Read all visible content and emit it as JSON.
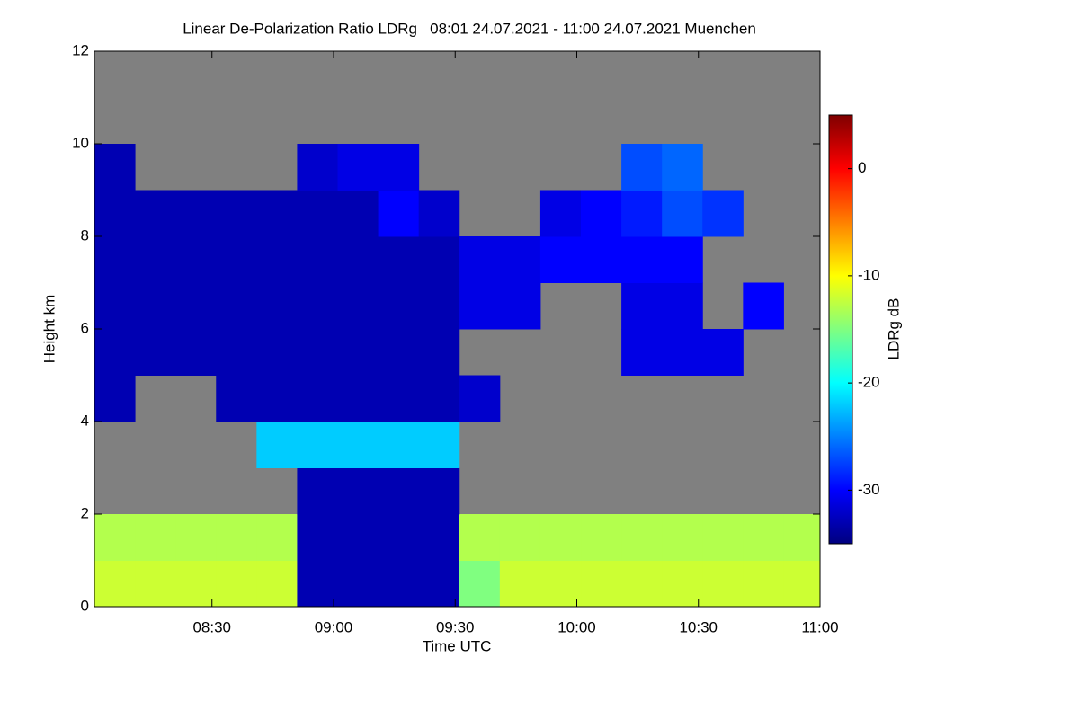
{
  "chart_data": {
    "type": "heatmap",
    "title": "Linear De-Polarization Ratio LDRg   08:01 24.07.2021 - 11:00 24.07.2021 Muenchen",
    "x_label": "Time UTC",
    "y_label": "Height km",
    "colorbar_label": "LDRg dB",
    "x": [
      486,
      496,
      506,
      516,
      526,
      536,
      546,
      556,
      566,
      576,
      586,
      596,
      606,
      616,
      626,
      636,
      646,
      656
    ],
    "y": [
      0.5,
      1.5,
      2.5,
      3.5,
      4.5,
      5.5,
      6.5,
      7.5,
      8.5,
      9.5,
      10.5,
      11.5
    ],
    "z": [
      [
        -12,
        -12,
        -12,
        -12,
        -12,
        -33,
        -33,
        -33,
        -33,
        -15,
        -12,
        -12,
        -12,
        -12,
        -12,
        -12,
        -12,
        -12
      ],
      [
        -13,
        -13,
        -13,
        -13,
        -13,
        -33,
        -33,
        -33,
        -33,
        -13,
        -13,
        -13,
        -13,
        -13,
        -13,
        -13,
        -13,
        -13
      ],
      [
        null,
        null,
        null,
        null,
        null,
        -33,
        -33,
        -33,
        -33,
        null,
        null,
        null,
        null,
        null,
        null,
        null,
        null,
        null
      ],
      [
        null,
        null,
        null,
        null,
        -22,
        -22,
        -22,
        -22,
        -22,
        null,
        null,
        null,
        null,
        null,
        null,
        null,
        null,
        null
      ],
      [
        -33,
        null,
        null,
        -33,
        -33,
        -33,
        -33,
        -33,
        -33,
        -32,
        null,
        null,
        null,
        null,
        null,
        null,
        null,
        null
      ],
      [
        -33,
        -33,
        -33,
        -33,
        -33,
        -33,
        -33,
        -33,
        -33,
        null,
        null,
        null,
        null,
        -31,
        -31,
        -31,
        null,
        null
      ],
      [
        -33,
        -33,
        -33,
        -33,
        -33,
        -33,
        -33,
        -33,
        -33,
        -31,
        -31,
        null,
        null,
        -31,
        -31,
        null,
        -30,
        null
      ],
      [
        -33,
        -33,
        -33,
        -33,
        -33,
        -33,
        -33,
        -33,
        -33,
        -31,
        -31,
        -30,
        -30,
        -30,
        -30,
        null,
        null,
        null
      ],
      [
        -33,
        -33,
        -33,
        -33,
        -33,
        -33,
        -33,
        -30,
        -32,
        null,
        null,
        -31,
        -30,
        -29,
        -27,
        -28,
        null,
        null
      ],
      [
        -33,
        null,
        null,
        null,
        null,
        -32,
        -31,
        -31,
        null,
        null,
        null,
        null,
        null,
        -27,
        -26,
        null,
        null,
        null
      ],
      [
        null,
        null,
        null,
        null,
        null,
        null,
        null,
        null,
        null,
        null,
        null,
        null,
        null,
        null,
        null,
        null,
        null,
        null
      ],
      [
        null,
        null,
        null,
        null,
        null,
        null,
        null,
        null,
        null,
        null,
        null,
        null,
        null,
        null,
        null,
        null,
        null,
        null
      ]
    ],
    "xlim": [
      481,
      660
    ],
    "xticks": [
      {
        "value": 510,
        "label": "08:30"
      },
      {
        "value": 540,
        "label": "09:00"
      },
      {
        "value": 570,
        "label": "09:30"
      },
      {
        "value": 600,
        "label": "10:00"
      },
      {
        "value": 630,
        "label": "10:30"
      },
      {
        "value": 660,
        "label": "11:00"
      }
    ],
    "ylim": [
      0,
      12
    ],
    "yticks": [
      0,
      2,
      4,
      6,
      8,
      10,
      12
    ],
    "zlim": [
      -35,
      5
    ],
    "zticks": [
      0,
      -10,
      -20,
      -30
    ],
    "colorscale": [
      "#00007f",
      "#0000ff",
      "#0080ff",
      "#00ffff",
      "#80ff80",
      "#ffff00",
      "#ff8000",
      "#ff0000",
      "#7f0000"
    ],
    "missing_color": "#808080"
  }
}
